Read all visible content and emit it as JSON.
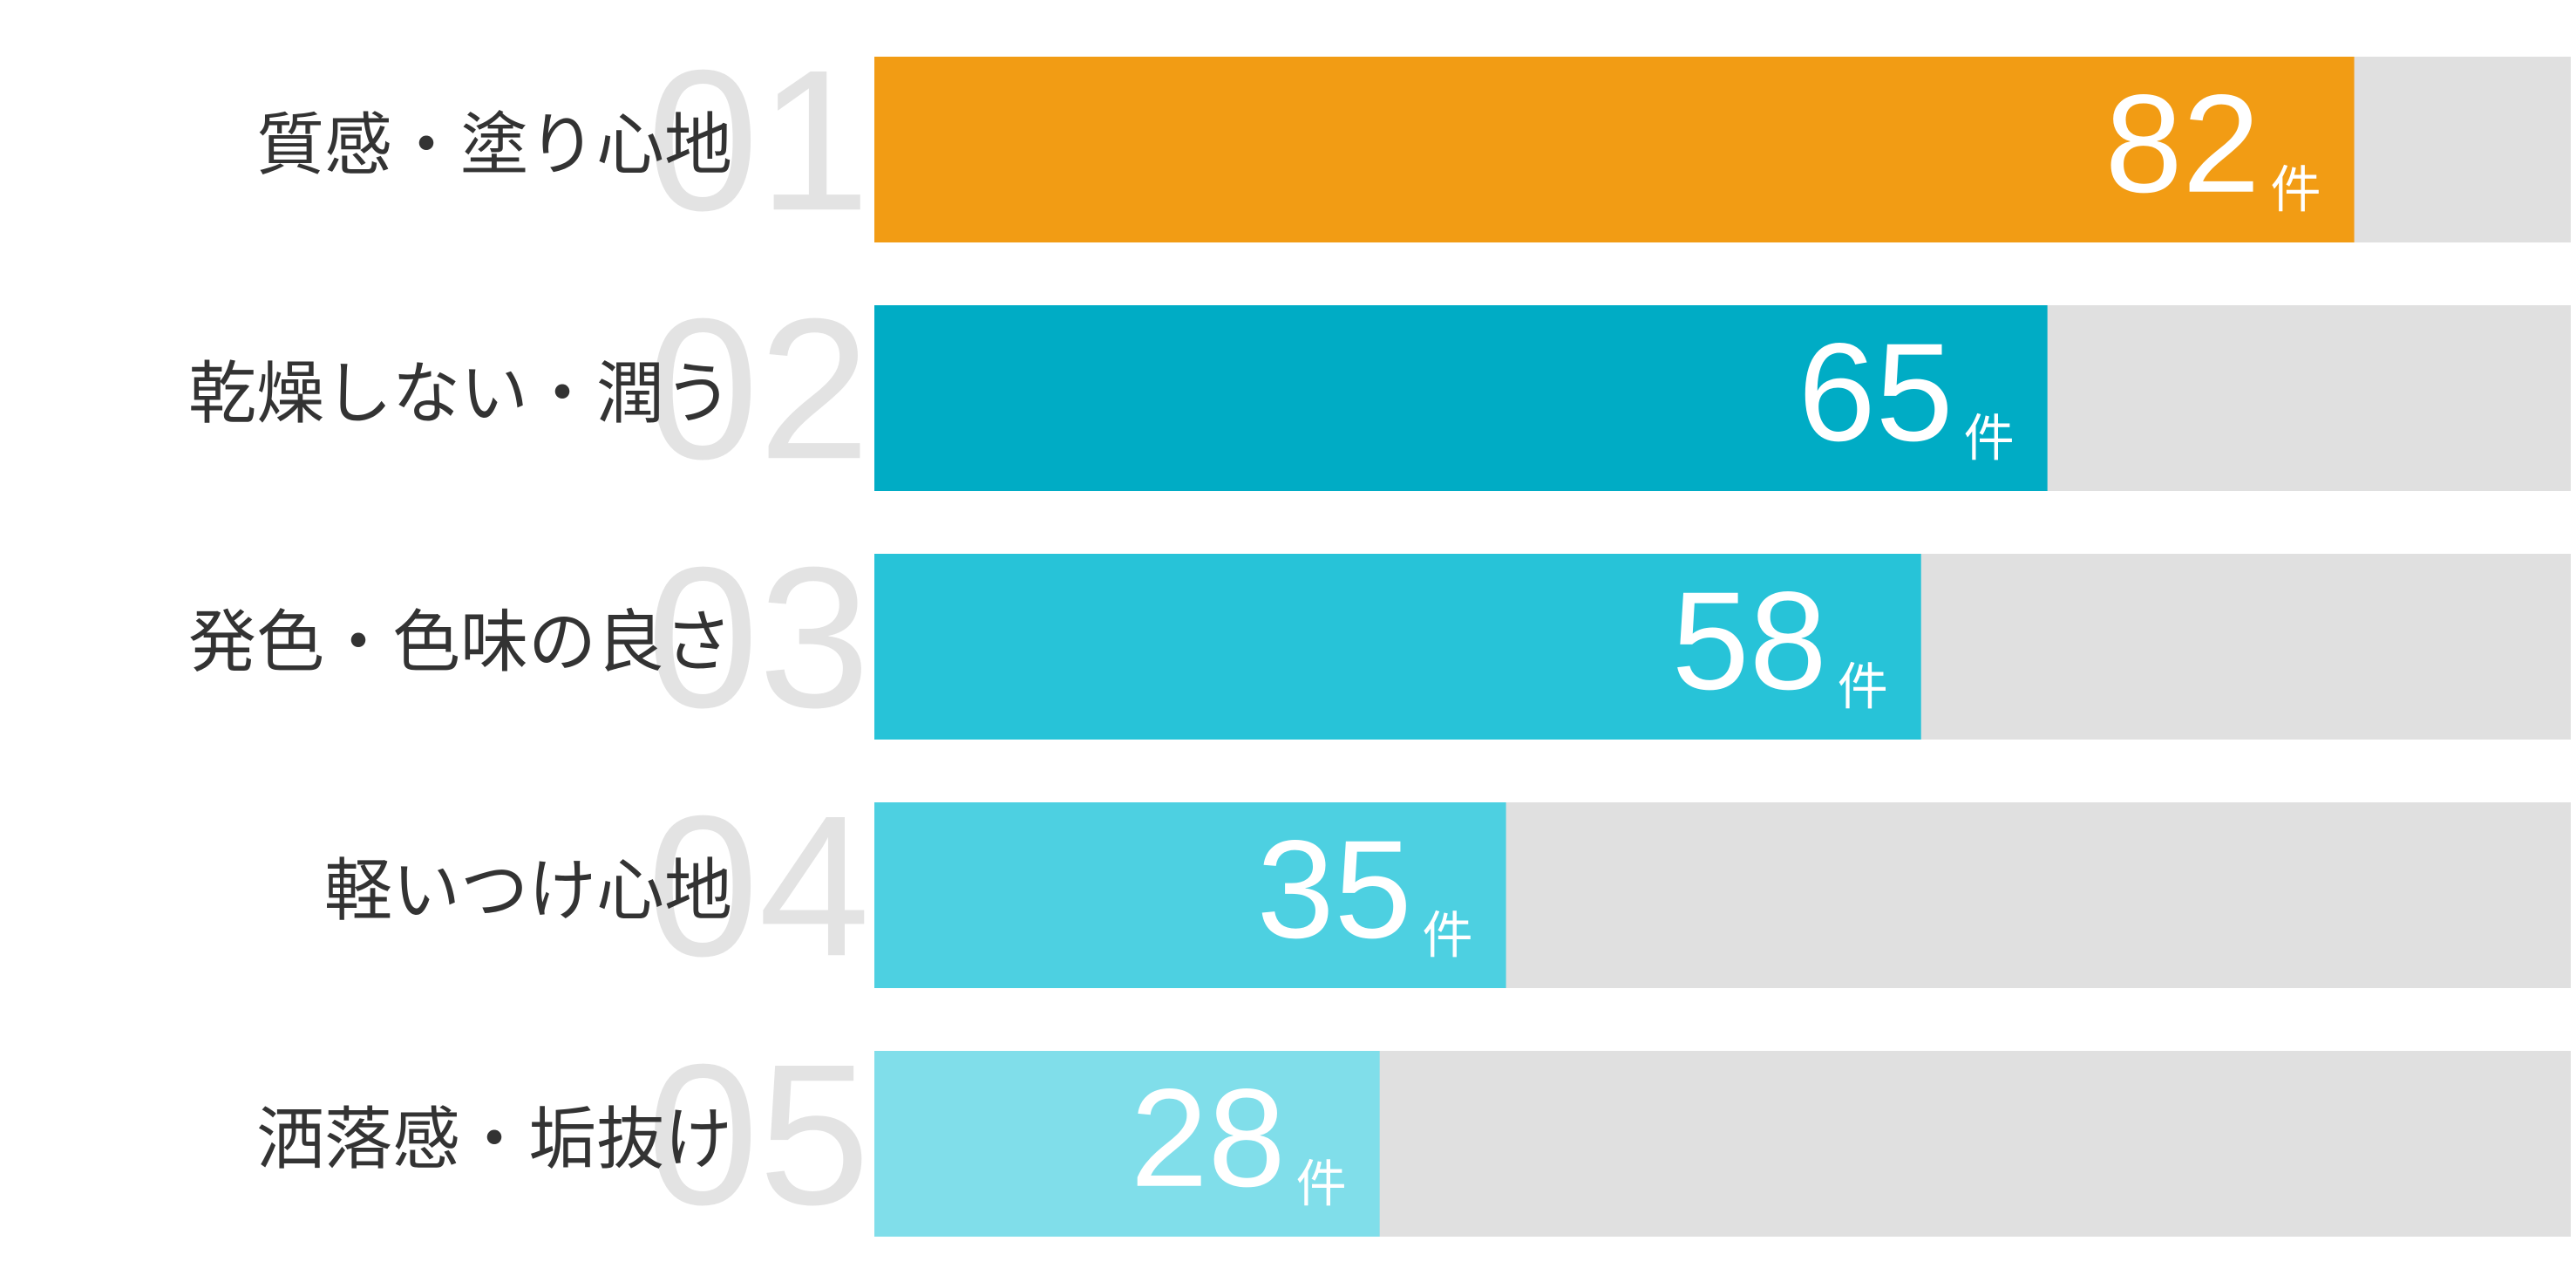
{
  "chart_data": {
    "type": "bar",
    "orientation": "horizontal",
    "categories": [
      "質感・塗り心地",
      "乾燥しない・潤う",
      "発色・色味の良さ",
      "軽いつけ心地",
      "洒落感・垢抜け"
    ],
    "ranks": [
      "01",
      "02",
      "03",
      "04",
      "05"
    ],
    "values": [
      82,
      65,
      58,
      35,
      28
    ],
    "unit": "件",
    "colors": [
      "#f29c14",
      "#00acc5",
      "#27c3d8",
      "#4dd0e1",
      "#80deea"
    ],
    "track_color": "#e0e0e0",
    "xlim": [
      0,
      94
    ]
  }
}
